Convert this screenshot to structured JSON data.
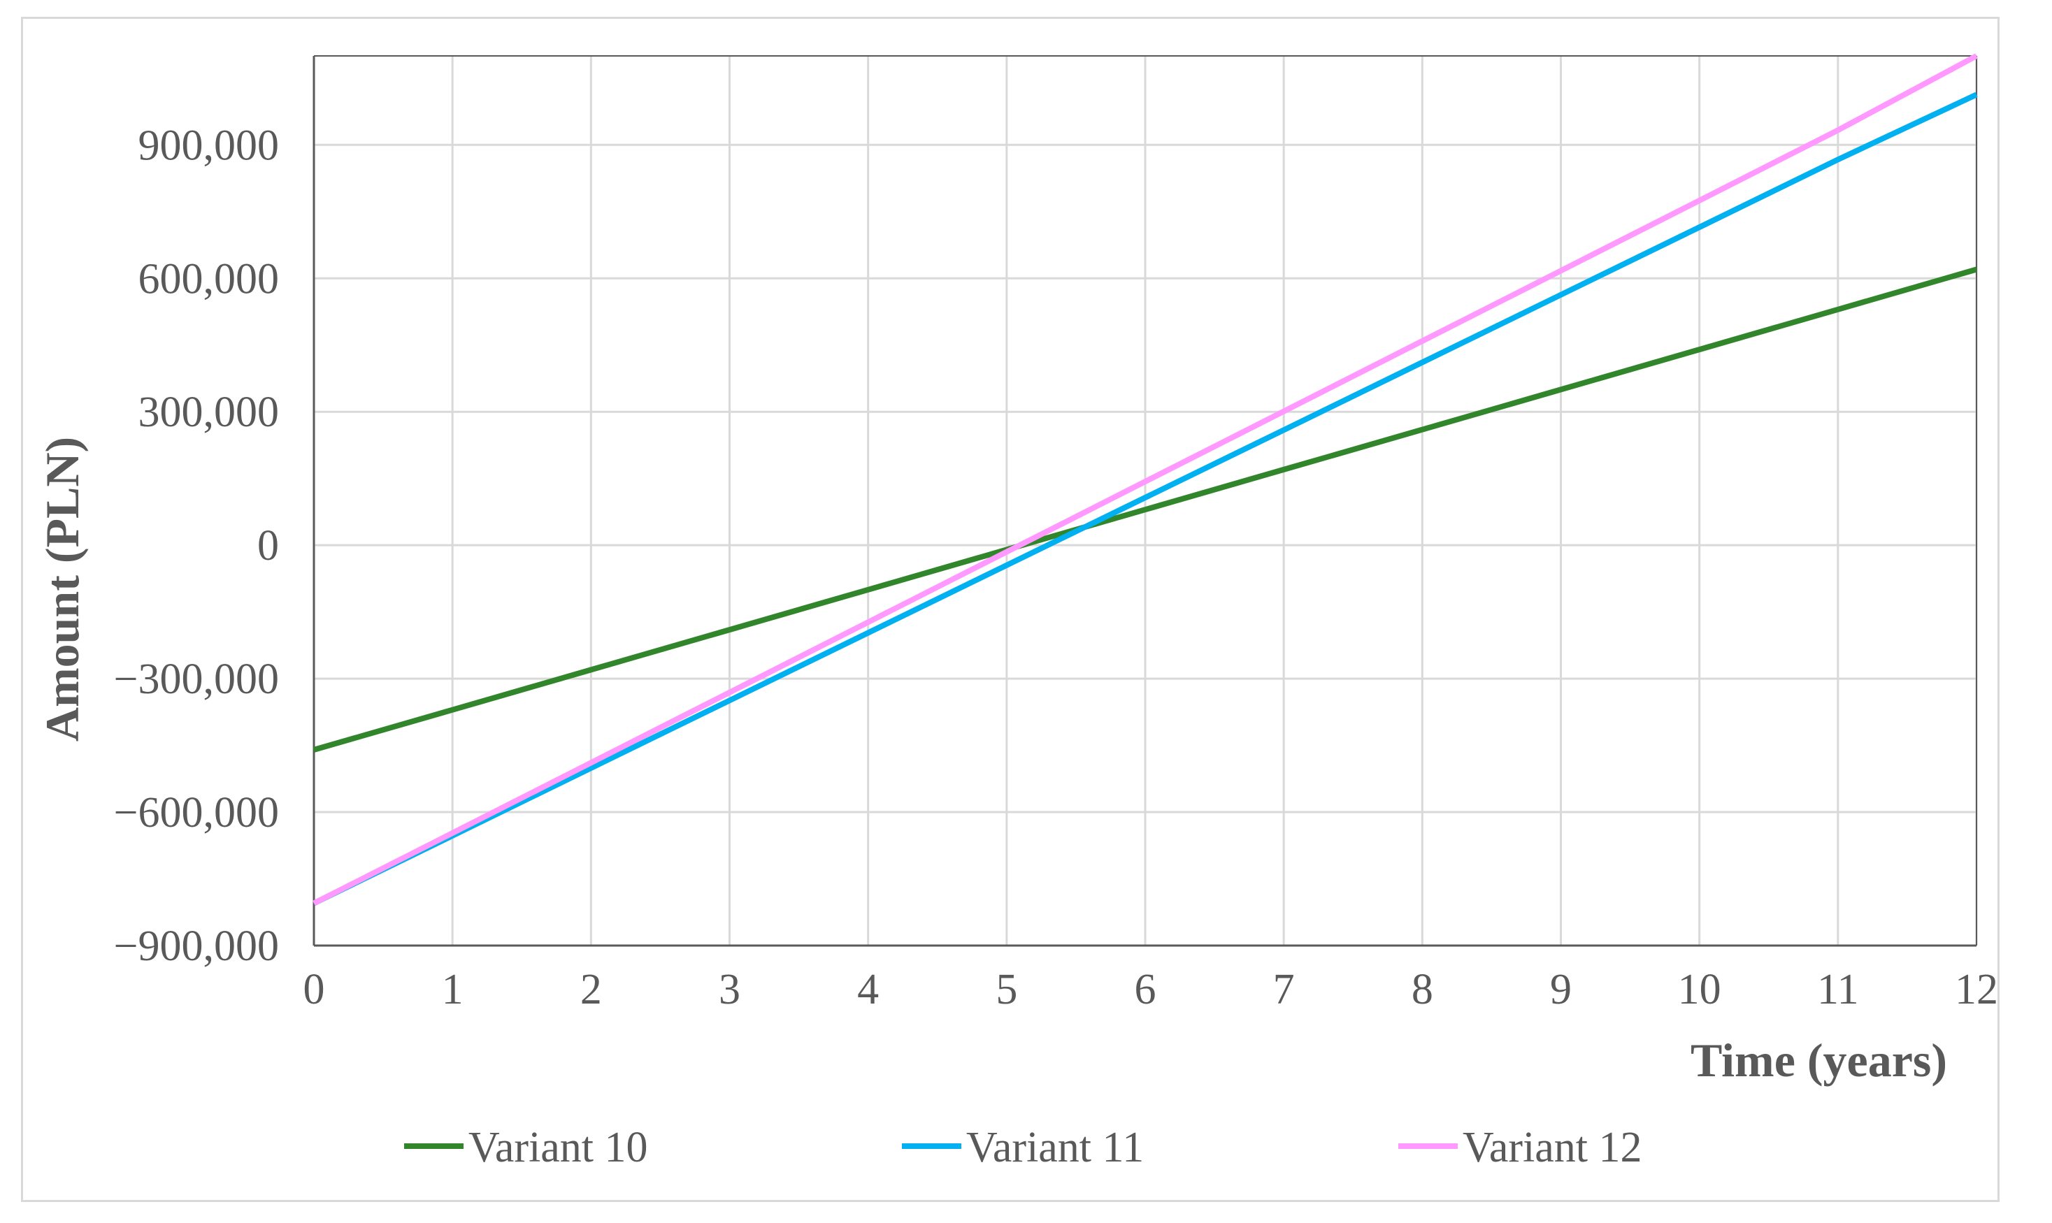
{
  "chart_data": {
    "type": "line",
    "xlabel": "Time (years)",
    "ylabel": "Amount (PLN)",
    "xlim": [
      0,
      12
    ],
    "ylim": [
      -900000,
      1100000
    ],
    "x_ticks": [
      "0",
      "1",
      "2",
      "3",
      "4",
      "5",
      "6",
      "7",
      "8",
      "9",
      "10",
      "11",
      "12"
    ],
    "y_ticks": [
      {
        "value": -900000,
        "label": "−900,000"
      },
      {
        "value": -600000,
        "label": "−600,000"
      },
      {
        "value": -300000,
        "label": "−300,000"
      },
      {
        "value": 0,
        "label": "0"
      },
      {
        "value": 300000,
        "label": "300,000"
      },
      {
        "value": 600000,
        "label": "600,000"
      },
      {
        "value": 900000,
        "label": "900,000"
      }
    ],
    "grid": true,
    "legend_position": "bottom",
    "x": [
      0,
      1,
      2,
      3,
      4,
      5,
      6,
      7,
      8,
      9,
      10,
      11,
      12
    ],
    "series": [
      {
        "name": "Variant 10",
        "color": "#31862b",
        "values": [
          -460000,
          -370000,
          -280000,
          -190000,
          -100000,
          -10000,
          80000,
          170000,
          260000,
          350000,
          440000,
          530000,
          620000
        ]
      },
      {
        "name": "Variant 11",
        "color": "#00b0f0",
        "values": [
          -805000,
          -653000,
          -501000,
          -349000,
          -197000,
          -45000,
          107000,
          259000,
          411000,
          563000,
          715000,
          867000,
          1013000
        ]
      },
      {
        "name": "Variant 12",
        "color": "#ff99ff",
        "values": [
          -805000,
          -647000,
          -489000,
          -331000,
          -173000,
          -15000,
          143000,
          301000,
          459000,
          617000,
          775000,
          933000,
          1100000
        ]
      }
    ]
  }
}
